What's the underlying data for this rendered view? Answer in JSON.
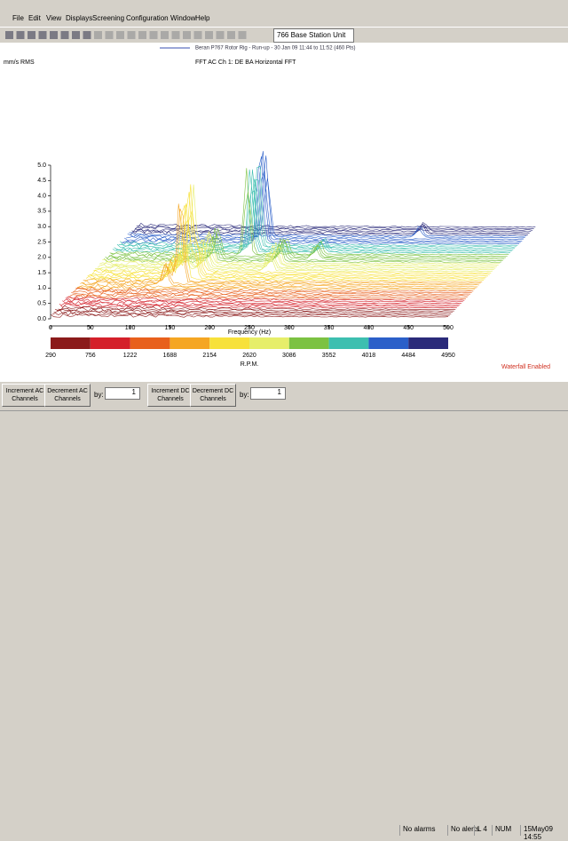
{
  "menu": [
    "File",
    "Edit",
    "View",
    "Displays",
    "Screening",
    "Configuration",
    "Window",
    "Help"
  ],
  "station": "766 Base Station Unit",
  "chart": {
    "type": "waterfall",
    "subtitle": "Beran P767 Rotor Rig - Run-up  - 30 Jan 09 11:44 to 11:52 (460 Pts)",
    "title": "FFT AC Ch  1: DE BA Horizontal FFT",
    "y_unit": "mm/s RMS",
    "ylim": [
      0,
      5
    ],
    "yticks": [
      {
        "value": 0,
        "label": "0.0"
      },
      {
        "value": 0.5,
        "label": "0.5"
      },
      {
        "value": 1,
        "label": "1.0"
      },
      {
        "value": 1.5,
        "label": "1.5"
      },
      {
        "value": 2,
        "label": "2.0"
      },
      {
        "value": 2.5,
        "label": "2.5"
      },
      {
        "value": 3,
        "label": "3.0"
      },
      {
        "value": 3.5,
        "label": "3.5"
      },
      {
        "value": 4,
        "label": "4.0"
      },
      {
        "value": 4.5,
        "label": "4.5"
      },
      {
        "value": 5,
        "label": "5.0"
      }
    ],
    "xlim": [
      0,
      500
    ],
    "xticks": [
      0,
      50,
      100,
      150,
      200,
      250,
      300,
      350,
      400,
      450,
      500
    ],
    "x_label": "Frequency (Hz)",
    "rpm_ticks": [
      290,
      756,
      1222,
      1688,
      2154,
      2620,
      3086,
      3552,
      4018,
      4484,
      4950
    ],
    "rpm_colors": [
      "#8b1a1a",
      "#d4202a",
      "#e8601c",
      "#f5a623",
      "#f7e13a",
      "#e6ee6a",
      "#7cc242",
      "#3dbfb0",
      "#2b5fc9",
      "#2a2a7a"
    ],
    "rpm_label": "R.P.M.",
    "status_note": "Waterfall Enabled"
  },
  "controls": {
    "inc_ac": "Increment AC Channels",
    "dec_ac": "Decrement AC Channels",
    "by1": "by:",
    "val1": "1",
    "inc_dc": "Increment DC Channels",
    "dec_dc": "Decrement DC Channels",
    "by2": "by:",
    "val2": "1"
  },
  "status": [
    "No alarms",
    "No alerts",
    "L 4",
    "NUM",
    "15May09 14:55"
  ]
}
